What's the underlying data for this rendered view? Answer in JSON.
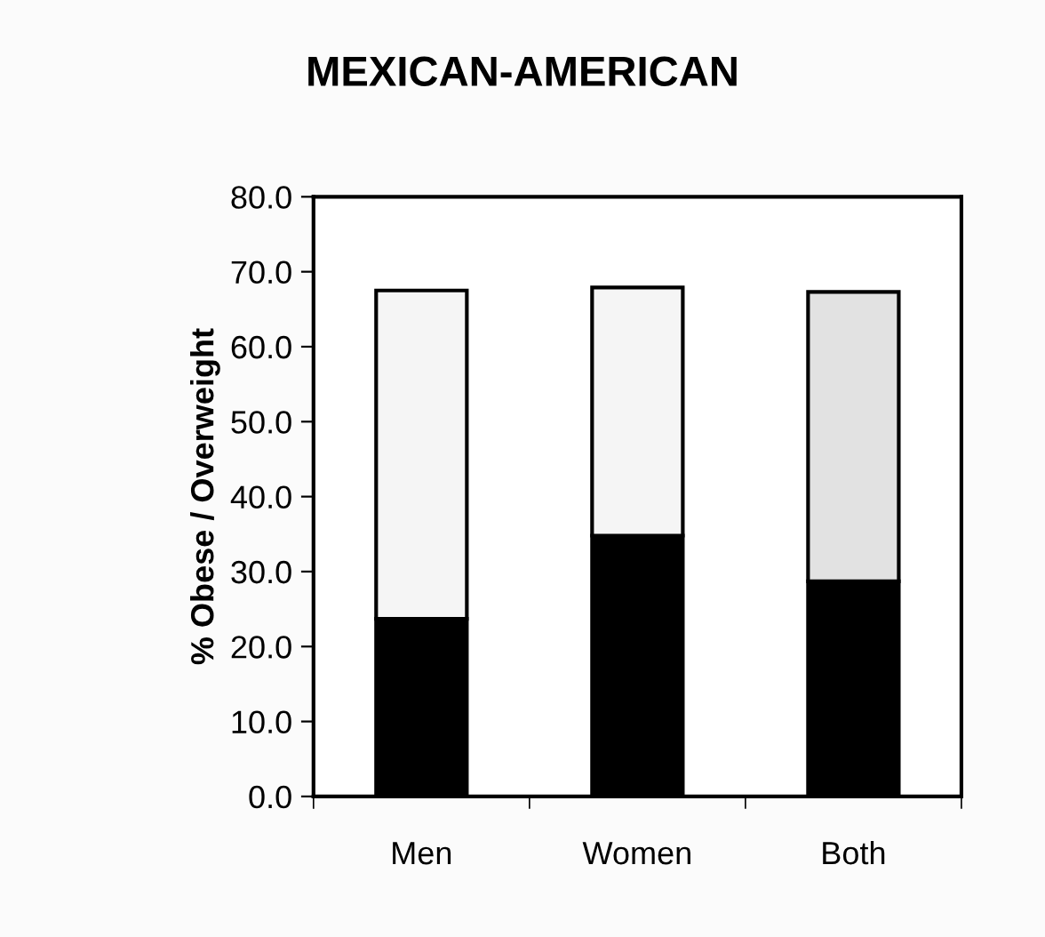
{
  "chart_data": {
    "type": "bar",
    "title": "MEXICAN-AMERICAN",
    "ylabel": "% Obese / Overweight",
    "categories": [
      "Men",
      "Women",
      "Both"
    ],
    "stacked": true,
    "series": [
      {
        "color": "#000000",
        "values": [
          23.7,
          34.8,
          28.7
        ]
      },
      {
        "color": "#f5f5f5",
        "colors": [
          "#f5f5f5",
          "#f5f5f5",
          "#e2e2e2"
        ],
        "values": [
          43.8,
          33.1,
          38.6
        ]
      }
    ],
    "ylim": [
      0,
      80
    ],
    "yticks": [
      {
        "value": 0,
        "label": "0.0"
      },
      {
        "value": 10,
        "label": "10.0"
      },
      {
        "value": 20,
        "label": "20.0"
      },
      {
        "value": 30,
        "label": "30.0"
      },
      {
        "value": 40,
        "label": "40.0"
      },
      {
        "value": 50,
        "label": "50.0"
      },
      {
        "value": 60,
        "label": "60.0"
      },
      {
        "value": 70,
        "label": "70.0"
      },
      {
        "value": 80,
        "label": "80.0"
      }
    ],
    "grid": false,
    "legend": false
  }
}
